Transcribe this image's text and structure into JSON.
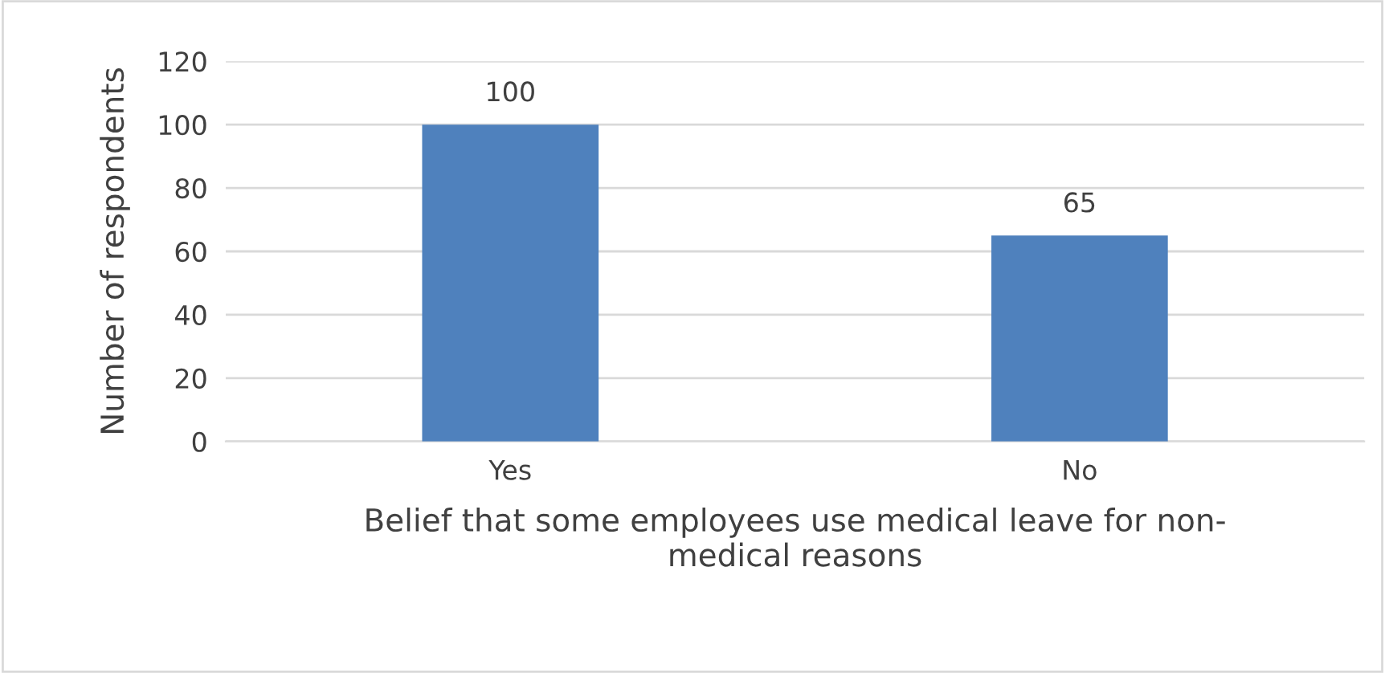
{
  "chart_data": {
    "type": "bar",
    "xlabel": "Belief that some employees use medical leave for non-\nmedical reasons",
    "ylabel": "Number of respondents",
    "categories": [
      "Yes",
      "No"
    ],
    "values": [
      100,
      65
    ],
    "color": "#4f81bd",
    "ylim": [
      0,
      120
    ],
    "yticks": [
      0,
      20,
      40,
      60,
      80,
      100,
      120
    ],
    "grid": "y",
    "data_labels": true,
    "legend": false
  }
}
